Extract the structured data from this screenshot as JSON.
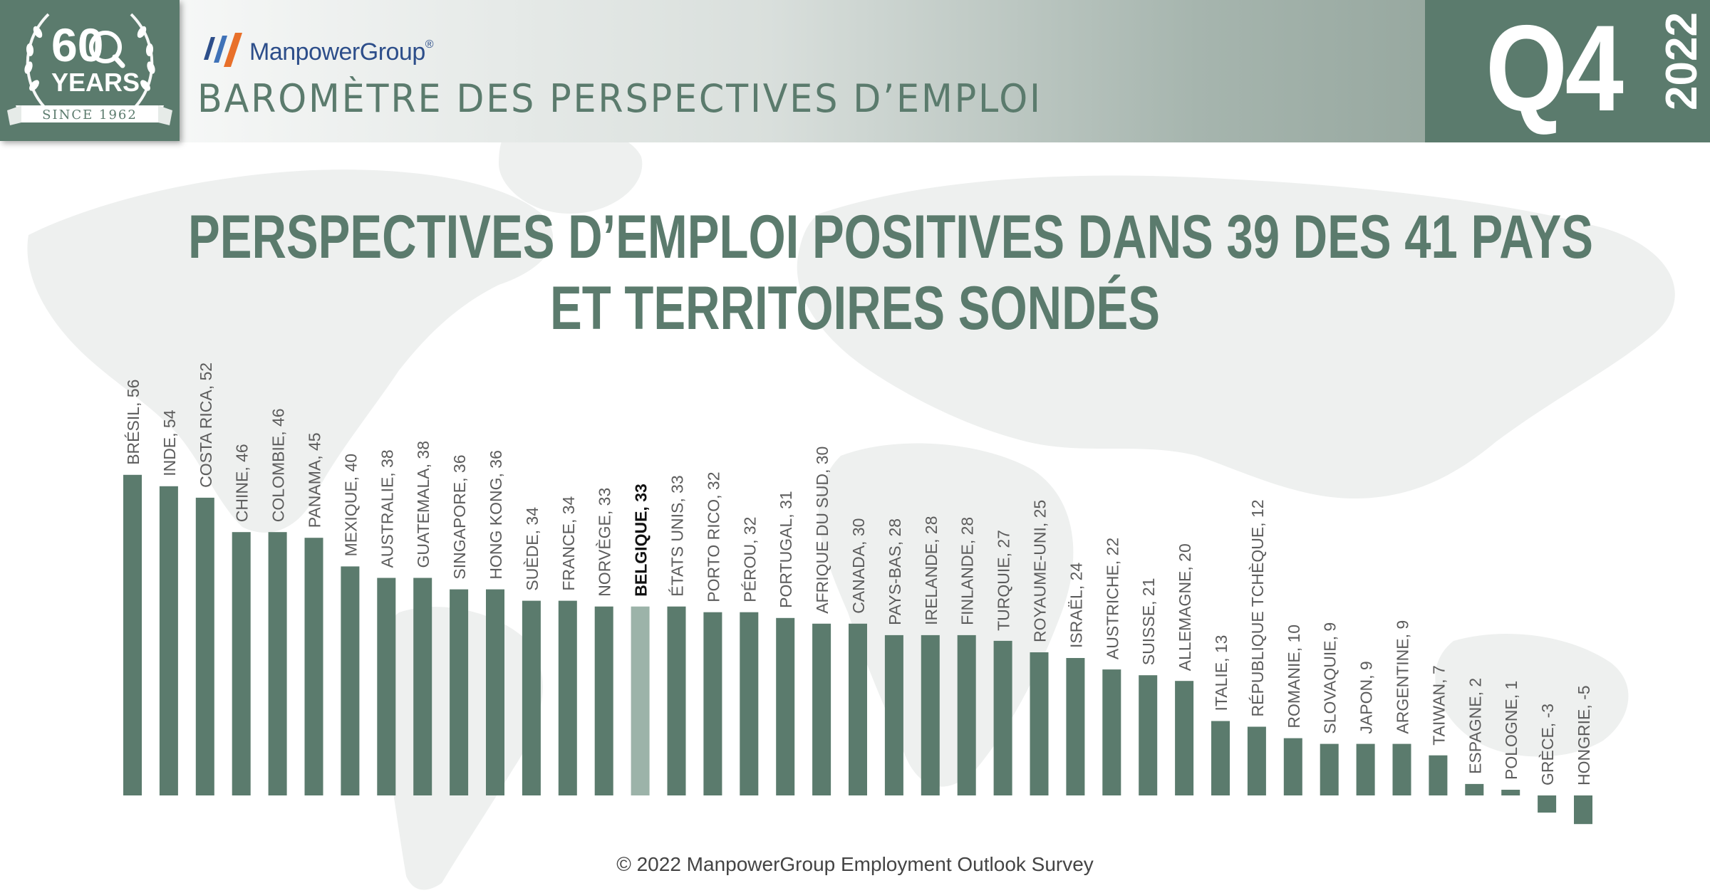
{
  "brand": {
    "name": "ManpowerGroup",
    "registered": "®",
    "badge_number": "60",
    "badge_word": "YEARS",
    "badge_since": "SINCE 1962"
  },
  "header": {
    "title": "BAROMÈTRE DES PERSPECTIVES D’EMPLOI",
    "quarter": "Q4",
    "year": "2022"
  },
  "headline": {
    "line1": "PERSPECTIVES D’EMPLOI POSITIVES DANS 39 DES 41 PAYS",
    "line2": "ET TERRITOIRES SONDÉS"
  },
  "footer": "© 2022 ManpowerGroup Employment Outlook Survey",
  "colors": {
    "bar": "#5b7b6d",
    "highlight_bar": "#9cb3a9",
    "header_green": "#5b7b6d",
    "brand_blue": "#2d4e8a",
    "brand_orange": "#e8702a"
  },
  "chart_data": {
    "type": "bar",
    "highlight": "BELGIQUE",
    "categories": [
      "BRÉSIL",
      "INDE",
      "COSTA RICA",
      "CHINE",
      "COLOMBIE",
      "PANAMA",
      "MEXIQUE",
      "AUSTRALIE",
      "GUATEMALA",
      "SINGAPORE",
      "HONG KONG",
      "SUÈDE",
      "FRANCE",
      "NORVÈGE",
      "BELGIQUE",
      "ÉTATS UNIS",
      "PORTO RICO",
      "PÉROU",
      "PORTUGAL",
      "AFRIQUE DU SUD",
      "CANADA",
      "PAYS-BAS",
      "IRELANDE",
      "FINLANDE",
      "TURQUIE",
      "ROYAUME-UNI",
      "ISRAËL",
      "AUSTRICHE",
      "SUISSE",
      "ALLEMAGNE",
      "ITALIE",
      "RÉPUBLIQUE TCHÈQUE",
      "ROMANIE",
      "SLOVAQUIE",
      "JAPON",
      "ARGENTINE",
      "TAIWAN",
      "ESPAGNE",
      "POLOGNE",
      "GRÈCE",
      "HONGRIE"
    ],
    "values": [
      56,
      54,
      52,
      46,
      46,
      45,
      40,
      38,
      38,
      36,
      36,
      34,
      34,
      33,
      33,
      33,
      32,
      32,
      31,
      30,
      30,
      28,
      28,
      28,
      27,
      25,
      24,
      22,
      21,
      20,
      13,
      12,
      10,
      9,
      9,
      9,
      7,
      2,
      1,
      -3,
      -5
    ],
    "labels": [
      "BRÉSIL, 56",
      "INDE, 54",
      "COSTA RICA, 52",
      "CHINE, 46",
      "COLOMBIE, 46",
      "PANAMA, 45",
      "MEXIQUE, 40",
      "AUSTRALIE, 38",
      "GUATEMALA, 38",
      "SINGAPORE, 36",
      "HONG KONG, 36",
      "SUÈDE, 34",
      "FRANCE, 34",
      "NORVÈGE, 33",
      "BELGIQUE, 33",
      "ÉTATS UNIS, 33",
      "PORTO RICO, 32",
      "PÉROU, 32",
      "PORTUGAL, 31",
      "AFRIQUE DU SUD, 30",
      "CANADA, 30",
      "PAYS-BAS, 28",
      "IRELANDE, 28",
      "FINLANDE, 28",
      "TURQUIE, 27",
      "ROYAUME-UNI, 25",
      "ISRAËL, 24",
      "AUSTRICHE, 22",
      "SUISSE, 21",
      "ALLEMAGNE, 20",
      "ITALIE, 13",
      "RÉPUBLIQUE TCHÈQUE, 12",
      "ROMANIE, 10",
      "SLOVAQUIE, 9",
      "JAPON, 9",
      "ARGENTINE, 9",
      "TAIWAN, 7",
      "ESPAGNE, 2",
      "POLOGNE, 1",
      "GRÈCE, -3",
      "HONGRIE, -5"
    ],
    "legend": "none",
    "grid": false
  }
}
